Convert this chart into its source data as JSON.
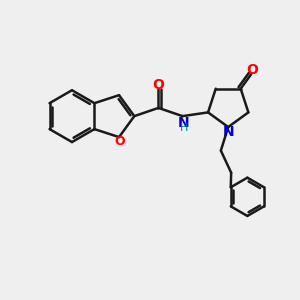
{
  "background_color": "#efefef",
  "bond_color": "#1a1a1a",
  "oxygen_color": "#ff0000",
  "nitrogen_color": "#0000cc",
  "nh_color": "#008080",
  "line_width": 1.8,
  "figsize": [
    3.0,
    3.0
  ],
  "dpi": 100,
  "xlim": [
    0,
    10
  ],
  "ylim": [
    0,
    10
  ]
}
